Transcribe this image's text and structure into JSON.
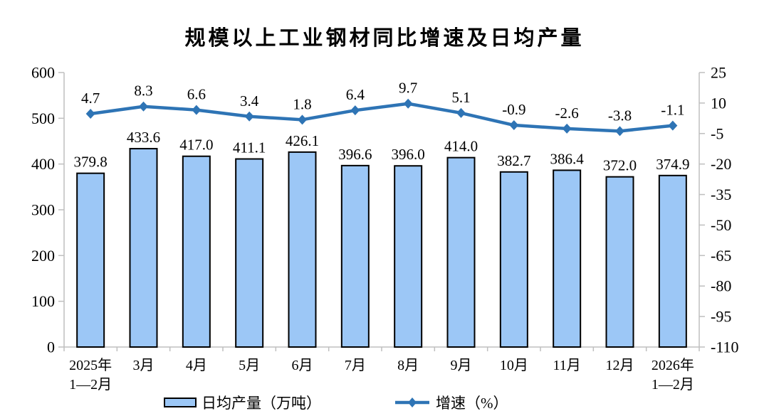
{
  "title": "规模以上工业钢材同比增速及日均产量",
  "chart_data": {
    "type": "combo_bar_line",
    "categories": [
      "2025年\n1—2月",
      "3月",
      "4月",
      "5月",
      "6月",
      "7月",
      "8月",
      "9月",
      "10月",
      "11月",
      "12月",
      "2026年\n1—2月"
    ],
    "series": [
      {
        "name": "日均产量（万吨）",
        "type": "bar",
        "axis": "left",
        "values": [
          379.8,
          433.6,
          417.0,
          411.1,
          426.1,
          396.6,
          396.0,
          414.0,
          382.7,
          386.4,
          372.0,
          374.9
        ]
      },
      {
        "name": "增速（%）",
        "type": "line",
        "axis": "right",
        "values": [
          4.7,
          8.3,
          6.6,
          3.4,
          1.8,
          6.4,
          9.7,
          5.1,
          -0.9,
          -2.6,
          -3.8,
          -1.1
        ]
      }
    ],
    "left_axis": {
      "min": 0,
      "max": 600,
      "ticks": [
        600,
        500,
        400,
        300,
        200,
        100,
        0
      ]
    },
    "right_axis": {
      "min": -110,
      "max": 25,
      "ticks": [
        25,
        10,
        -5,
        -20,
        -35,
        -50,
        -65,
        -80,
        -95,
        -110
      ]
    },
    "grid": false,
    "data_labels": true,
    "legend_position": "bottom"
  },
  "colors": {
    "bar_fill": "#9CC7F6",
    "bar_stroke": "#000000",
    "line": "#2E74B5",
    "axis": "#BFBFBF",
    "text": "#000000",
    "background": "#FFFFFF"
  }
}
